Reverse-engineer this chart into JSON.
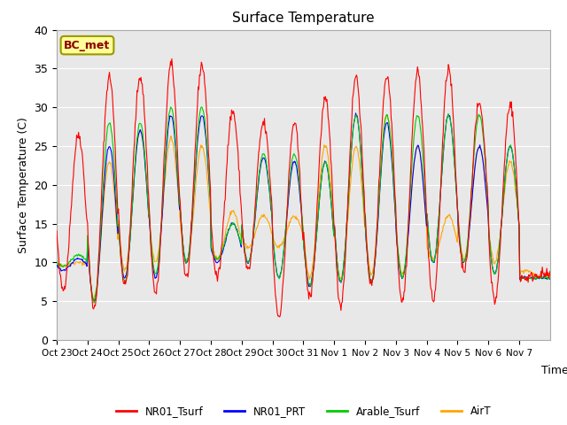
{
  "title": "Surface Temperature",
  "ylabel": "Surface Temperature (C)",
  "xlabel": "Time",
  "ylim": [
    0,
    40
  ],
  "figure_bg": "#ffffff",
  "plot_bg_color": "#e8e8e8",
  "series": [
    "NR01_Tsurf",
    "NR01_PRT",
    "Arable_Tsurf",
    "AirT"
  ],
  "series_colors": [
    "#ff0000",
    "#0000ff",
    "#00cc00",
    "#ffa500"
  ],
  "xtick_labels": [
    "Oct 23",
    "Oct 24",
    "Oct 25",
    "Oct 26",
    "Oct 27",
    "Oct 28",
    "Oct 29",
    "Oct 30",
    "Oct 31",
    "Nov 1",
    "Nov 2",
    "Nov 3",
    "Nov 4",
    "Nov 5",
    "Nov 6",
    "Nov 7"
  ],
  "annotation_text": "BC_met",
  "grid_color": "#ffffff",
  "n_days": 16,
  "pts_per_day": 48,
  "day_peaks_nro1": [
    26.5,
    34.0,
    34.0,
    35.5,
    35.5,
    29.5,
    28.0,
    28.0,
    31.0,
    34.0,
    34.0,
    34.5,
    35.0,
    30.5,
    30.5,
    8.5
  ],
  "day_troughs_nro1": [
    6.5,
    4.0,
    7.0,
    6.0,
    8.0,
    8.0,
    9.0,
    3.0,
    5.5,
    4.5,
    7.0,
    5.0,
    5.0,
    9.0,
    5.0,
    8.0
  ],
  "day_peaks_prt": [
    10.5,
    25.0,
    27.0,
    29.0,
    29.0,
    15.0,
    23.5,
    23.0,
    23.0,
    29.0,
    28.0,
    25.0,
    29.0,
    25.0,
    25.0,
    8.0
  ],
  "day_troughs_prt": [
    9.0,
    5.0,
    8.0,
    8.0,
    10.0,
    10.0,
    10.0,
    8.0,
    7.0,
    7.5,
    7.5,
    8.0,
    10.0,
    10.0,
    8.5,
    8.0
  ],
  "day_peaks_arable": [
    11.0,
    28.0,
    28.0,
    30.0,
    30.0,
    15.0,
    24.0,
    24.0,
    23.0,
    29.0,
    29.0,
    29.0,
    29.0,
    29.0,
    25.0,
    8.0
  ],
  "day_troughs_arable": [
    9.5,
    5.0,
    7.5,
    8.5,
    10.0,
    10.5,
    10.0,
    8.0,
    7.0,
    7.5,
    7.5,
    8.0,
    10.0,
    10.0,
    8.5,
    8.0
  ],
  "day_peaks_airt": [
    10.0,
    23.0,
    27.0,
    26.0,
    25.0,
    16.5,
    16.0,
    16.0,
    25.0,
    25.0,
    29.0,
    25.0,
    16.0,
    25.0,
    23.0,
    8.0
  ],
  "day_troughs_airt": [
    9.5,
    5.5,
    9.0,
    10.0,
    10.0,
    10.5,
    12.0,
    12.0,
    8.0,
    8.0,
    8.5,
    8.5,
    10.5,
    10.5,
    10.0,
    9.0
  ]
}
